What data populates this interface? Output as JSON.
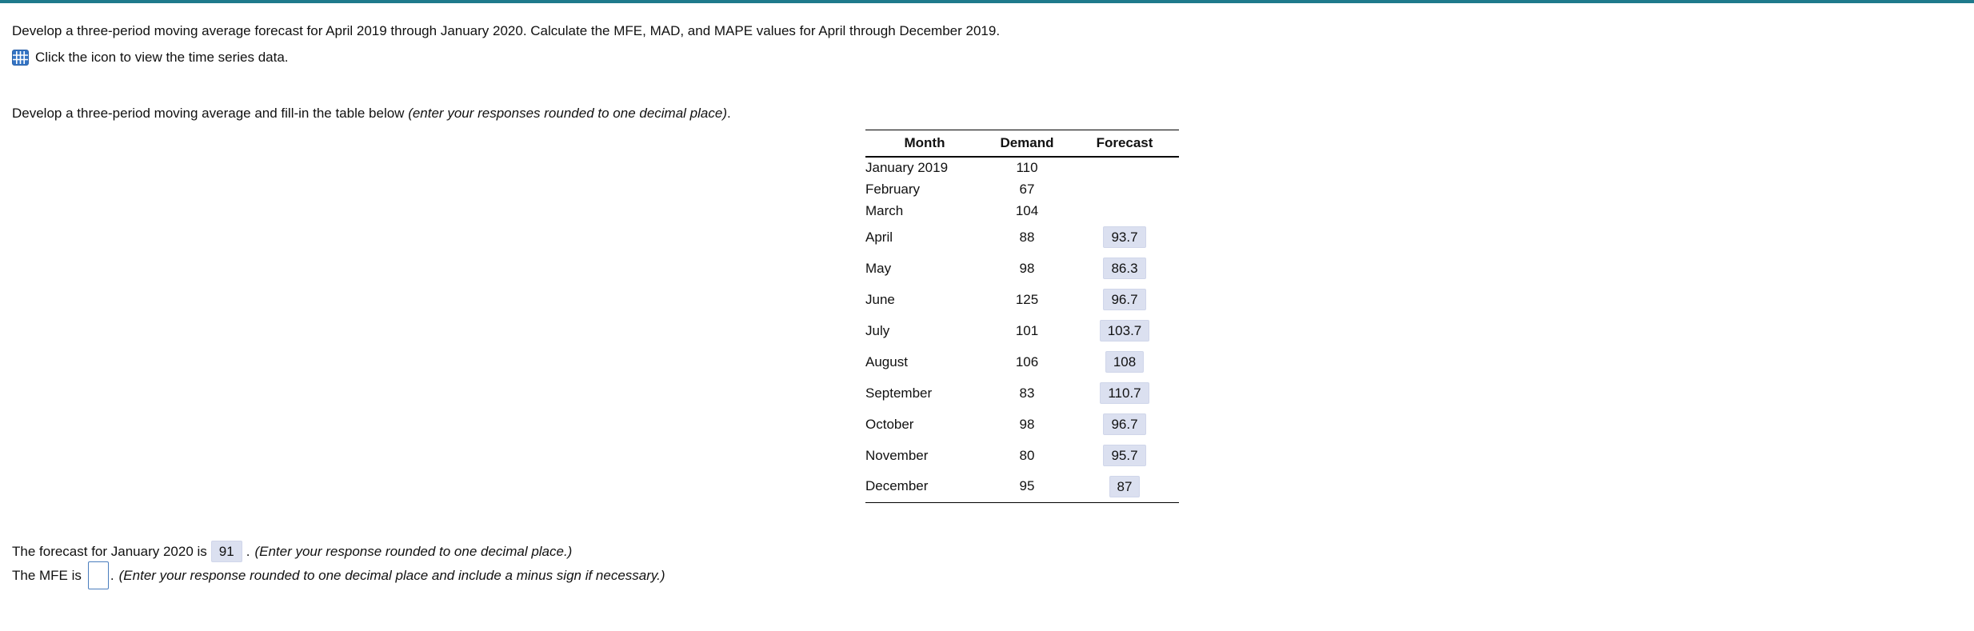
{
  "colors": {
    "top_accent": "#1e7a8c",
    "answer_background": "#dbe0f0",
    "input_border": "#4a7dbd",
    "icon_blue": "#3474c4"
  },
  "header": {
    "instruction1": "Develop a three-period moving average forecast for April 2019 through January 2020. Calculate the MFE, MAD, and MAPE values for April through December 2019.",
    "icon_note": "Click the icon to view the time series data.",
    "instruction2_normal": "Develop a three-period moving average and fill-in the table below ",
    "instruction2_italic": "(enter your responses rounded to one decimal place)",
    "instruction2_end": "."
  },
  "table": {
    "columns": [
      "Month",
      "Demand",
      "Forecast"
    ],
    "rows": [
      {
        "month": "January 2019",
        "demand": "110",
        "forecast": ""
      },
      {
        "month": "February",
        "demand": "67",
        "forecast": ""
      },
      {
        "month": "March",
        "demand": "104",
        "forecast": ""
      },
      {
        "month": "April",
        "demand": "88",
        "forecast": "93.7"
      },
      {
        "month": "May",
        "demand": "98",
        "forecast": "86.3"
      },
      {
        "month": "June",
        "demand": "125",
        "forecast": "96.7"
      },
      {
        "month": "July",
        "demand": "101",
        "forecast": "103.7"
      },
      {
        "month": "August",
        "demand": "106",
        "forecast": "108"
      },
      {
        "month": "September",
        "demand": "83",
        "forecast": "110.7"
      },
      {
        "month": "October",
        "demand": "98",
        "forecast": "96.7"
      },
      {
        "month": "November",
        "demand": "80",
        "forecast": "95.7"
      },
      {
        "month": "December",
        "demand": "95",
        "forecast": "87"
      }
    ]
  },
  "january_line": {
    "prefix": "The forecast for January 2020 is",
    "value": "91",
    "separator": ".",
    "note": "(Enter your response rounded to one decimal place.)"
  },
  "mfe_line": {
    "prefix": "The MFE is",
    "value": "",
    "separator": ".",
    "note": "(Enter your response rounded to one decimal place and include a minus sign if necessary.)"
  }
}
